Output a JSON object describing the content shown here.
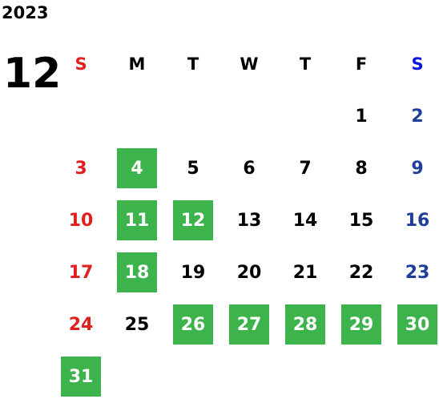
{
  "year": "2023",
  "month": "12",
  "weekdays": [
    "S",
    "M",
    "T",
    "W",
    "T",
    "F",
    "S"
  ],
  "weeks": [
    [
      null,
      null,
      null,
      null,
      null,
      {
        "text": "1",
        "highlighted": false
      },
      {
        "text": "2",
        "highlighted": false
      }
    ],
    [
      {
        "text": "3",
        "highlighted": false
      },
      {
        "text": "4",
        "highlighted": true
      },
      {
        "text": "5",
        "highlighted": false
      },
      {
        "text": "6",
        "highlighted": false
      },
      {
        "text": "7",
        "highlighted": false
      },
      {
        "text": "8",
        "highlighted": false
      },
      {
        "text": "9",
        "highlighted": false
      }
    ],
    [
      {
        "text": "10",
        "highlighted": false
      },
      {
        "text": "11",
        "highlighted": true
      },
      {
        "text": "12",
        "highlighted": true
      },
      {
        "text": "13",
        "highlighted": false
      },
      {
        "text": "14",
        "highlighted": false
      },
      {
        "text": "15",
        "highlighted": false
      },
      {
        "text": "16",
        "highlighted": false
      }
    ],
    [
      {
        "text": "17",
        "highlighted": false
      },
      {
        "text": "18",
        "highlighted": true
      },
      {
        "text": "19",
        "highlighted": false
      },
      {
        "text": "20",
        "highlighted": false
      },
      {
        "text": "21",
        "highlighted": false
      },
      {
        "text": "22",
        "highlighted": false
      },
      {
        "text": "23",
        "highlighted": false
      }
    ],
    [
      {
        "text": "24",
        "highlighted": false
      },
      {
        "text": "25",
        "highlighted": false
      },
      {
        "text": "26",
        "highlighted": true
      },
      {
        "text": "27",
        "highlighted": true
      },
      {
        "text": "28",
        "highlighted": true
      },
      {
        "text": "29",
        "highlighted": true
      },
      {
        "text": "30",
        "highlighted": true
      }
    ],
    [
      {
        "text": "31",
        "highlighted": true
      },
      null,
      null,
      null,
      null,
      null,
      null
    ]
  ]
}
